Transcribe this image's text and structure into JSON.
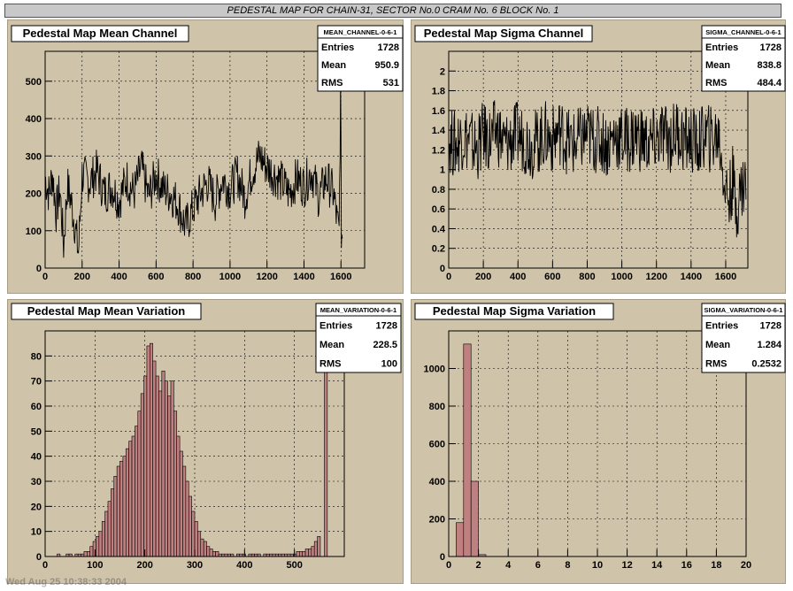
{
  "banner": "PEDESTAL MAP FOR CHAIN-31, SECTOR No.0 CRAM No. 6 BLOCK No. 1",
  "footer": "Wed Aug 25 10:38:33 2004",
  "colors": {
    "pad": "#cfc3aa",
    "hist_fill": "#c08080",
    "line": "#000000",
    "grid": "#000000"
  },
  "chart_data": [
    {
      "type": "line",
      "title": "Pedestal Map Mean Channel",
      "stats": {
        "name": "MEAN_CHANNEL-0-6-1",
        "entries_label": "Entries",
        "entries": "1728",
        "mean_label": "Mean",
        "mean": "950.9",
        "rms_label": "RMS",
        "rms": "531"
      },
      "xlim": [
        0,
        1728
      ],
      "ylim": [
        0,
        580
      ],
      "xticks": [
        0,
        200,
        400,
        600,
        800,
        1000,
        1200,
        1400,
        1600
      ],
      "yticks": [
        0,
        100,
        200,
        300,
        400,
        500
      ],
      "grid": true,
      "x_points": [
        0,
        20,
        40,
        60,
        80,
        100,
        120,
        140,
        160,
        180,
        200,
        240,
        280,
        320,
        360,
        400,
        440,
        480,
        520,
        560,
        600,
        640,
        680,
        720,
        760,
        800,
        840,
        880,
        920,
        960,
        1000,
        1040,
        1080,
        1120,
        1160,
        1200,
        1240,
        1280,
        1320,
        1360,
        1400,
        1440,
        1480,
        1520,
        1560,
        1580,
        1590,
        1598,
        1602,
        1610
      ],
      "values": [
        240,
        200,
        250,
        150,
        210,
        60,
        220,
        180,
        120,
        40,
        250,
        230,
        260,
        200,
        220,
        180,
        240,
        200,
        270,
        190,
        250,
        210,
        200,
        170,
        110,
        160,
        200,
        230,
        180,
        240,
        210,
        250,
        190,
        260,
        300,
        270,
        250,
        230,
        200,
        240,
        220,
        260,
        190,
        240,
        200,
        120,
        90,
        480,
        100,
        80
      ],
      "notes": "noisy series; values approximate"
    },
    {
      "type": "line",
      "title": "Pedestal Map Sigma Channel",
      "stats": {
        "name": "SIGMA_CHANNEL-0-6-1",
        "entries_label": "Entries",
        "entries": "1728",
        "mean_label": "Mean",
        "mean": "838.8",
        "rms_label": "RMS",
        "rms": "484.4"
      },
      "xlim": [
        0,
        1728
      ],
      "ylim": [
        0,
        2.2
      ],
      "xticks": [
        0,
        200,
        400,
        600,
        800,
        1000,
        1200,
        1400,
        1600
      ],
      "yticks": [
        0,
        0.2,
        0.4,
        0.6,
        0.8,
        1,
        1.2,
        1.4,
        1.6,
        1.8,
        2
      ],
      "ytick_labels": [
        "0",
        "0.2",
        "0.4",
        "0.6",
        "0.8",
        "1",
        "1.2",
        "1.4",
        "1.6",
        "1.8",
        "2"
      ],
      "grid": true,
      "x_points": [
        0,
        40,
        80,
        120,
        160,
        200,
        240,
        280,
        320,
        360,
        400,
        440,
        480,
        520,
        560,
        600,
        640,
        680,
        720,
        760,
        800,
        840,
        880,
        920,
        960,
        1000,
        1040,
        1080,
        1120,
        1160,
        1200,
        1240,
        1280,
        1320,
        1360,
        1400,
        1440,
        1480,
        1520,
        1560,
        1600,
        1620,
        1640,
        1660,
        1680,
        1700,
        1720
      ],
      "values": [
        1.3,
        1.25,
        1.35,
        1.3,
        1.2,
        1.35,
        1.3,
        1.4,
        1.25,
        1.3,
        1.35,
        1.3,
        1.25,
        1.3,
        1.35,
        1.3,
        1.4,
        1.3,
        1.25,
        1.3,
        1.35,
        1.3,
        1.3,
        1.25,
        1.35,
        1.3,
        1.3,
        1.35,
        1.3,
        1.25,
        1.3,
        1.35,
        1.3,
        1.4,
        1.3,
        1.3,
        1.25,
        1.35,
        1.3,
        1.35,
        0.8,
        0.7,
        0.9,
        0.6,
        0.75,
        0.85,
        0.9
      ]
    },
    {
      "type": "bar",
      "title": "Pedestal Map Mean Variation",
      "stats": {
        "name": "MEAN_VARIATION-0-6-1",
        "entries_label": "Entries",
        "entries": "1728",
        "mean_label": "Mean",
        "mean": "228.5",
        "rms_label": "RMS",
        "rms": "100"
      },
      "xlim": [
        0,
        600
      ],
      "ylim": [
        0,
        90
      ],
      "xticks": [
        0,
        100,
        200,
        300,
        400,
        500
      ],
      "yticks": [
        0,
        10,
        20,
        30,
        40,
        50,
        60,
        70,
        80
      ],
      "grid": true,
      "bin_width": 6,
      "bin_start": 0,
      "values": [
        0,
        0,
        0,
        0,
        1,
        0,
        0,
        1,
        1,
        0,
        1,
        1,
        1,
        2,
        2,
        4,
        6,
        8,
        10,
        14,
        18,
        22,
        27,
        32,
        36,
        38,
        40,
        43,
        46,
        48,
        52,
        58,
        65,
        72,
        84,
        85,
        78,
        72,
        66,
        74,
        70,
        64,
        70,
        58,
        48,
        42,
        36,
        30,
        24,
        18,
        14,
        10,
        7,
        6,
        4,
        3,
        2,
        2,
        1,
        1,
        1,
        1,
        1,
        0,
        1,
        1,
        1,
        0,
        1,
        1,
        1,
        1,
        0,
        1,
        1,
        1,
        1,
        1,
        1,
        1,
        1,
        1,
        1,
        1,
        2,
        2,
        2,
        3,
        3,
        4,
        6,
        8,
        0,
        0,
        0,
        0,
        0,
        0,
        0,
        0
      ],
      "overflow_spike": {
        "x": 560,
        "value": 88
      }
    },
    {
      "type": "bar",
      "title": "Pedestal Map Sigma Variation",
      "stats": {
        "name": "SIGMA_VARIATION-0-6-1",
        "entries_label": "Entries",
        "entries": "1728",
        "mean_label": "Mean",
        "mean": "1.284",
        "rms_label": "RMS",
        "rms": "0.2532"
      },
      "xlim": [
        0,
        20
      ],
      "ylim": [
        0,
        1200
      ],
      "xticks": [
        0,
        2,
        4,
        6,
        8,
        10,
        12,
        14,
        16,
        18,
        20
      ],
      "yticks": [
        0,
        200,
        400,
        600,
        800,
        1000
      ],
      "grid": true,
      "bin_width": 0.5,
      "bin_start": 0,
      "values": [
        0,
        180,
        1130,
        400,
        10,
        0,
        0,
        0,
        0,
        0,
        0,
        0,
        0,
        0,
        0,
        0,
        0,
        0,
        0,
        0,
        0,
        0,
        0,
        0,
        0,
        0,
        0,
        0,
        0,
        0,
        0,
        0,
        0,
        0,
        0,
        0,
        0,
        0,
        0,
        0
      ]
    }
  ]
}
